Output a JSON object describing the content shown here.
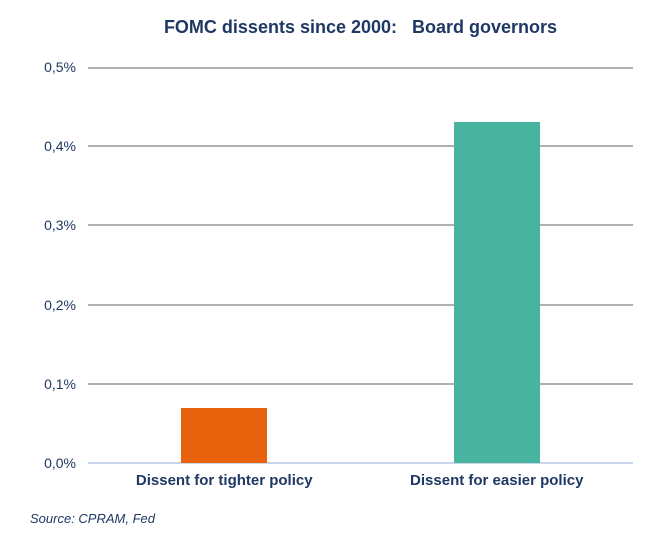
{
  "source": "Source: CPRAM, Fed",
  "chart_data": {
    "type": "bar",
    "title": "FOMC dissents since 2000:   Board governors",
    "categories": [
      "Dissent for tighter policy",
      "Dissent for easier policy"
    ],
    "values": [
      0.07,
      0.43
    ],
    "value_unit": "percent",
    "xlabel": "",
    "ylabel": "",
    "ylim": [
      0,
      0.5
    ],
    "ytick_step": 0.1,
    "ytick_labels": [
      "0,0%",
      "0,1%",
      "0,2%",
      "0,3%",
      "0,4%",
      "0,5%"
    ],
    "series_colors": [
      "#E8610D",
      "#48B49F"
    ],
    "grid": "horizontal",
    "legend": false
  },
  "colors": {
    "text_navy": "#1F3864",
    "gridline": "#B0B0B0",
    "axis_line": "#C9D6EA",
    "background": "#FFFFFF",
    "bar_tighter_policy": "#E8610D",
    "bar_easier_policy": "#48B49F"
  }
}
